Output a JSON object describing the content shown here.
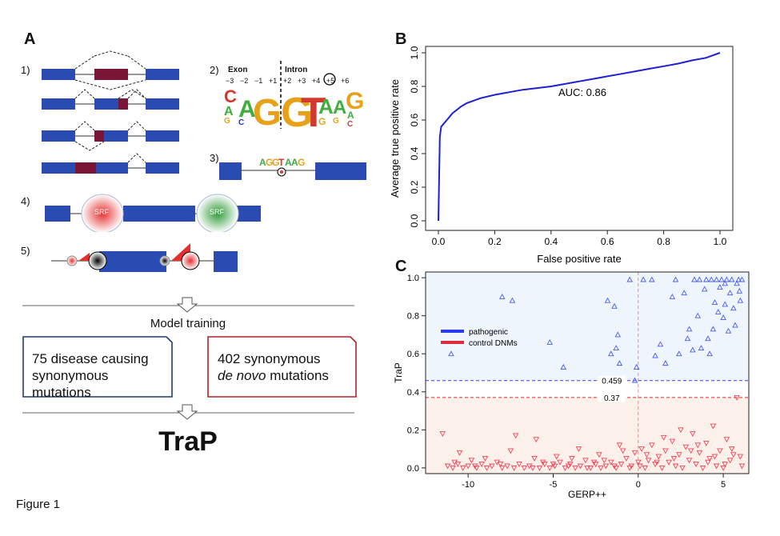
{
  "figure_label": "Figure 1",
  "panel_a": {
    "letter": "A",
    "steps": [
      "1)",
      "2)",
      "3)",
      "4)",
      "5)"
    ],
    "logo": {
      "exon_label": "Exon",
      "intron_label": "Intron",
      "positions": [
        "−3",
        "−2",
        "−1",
        "+1",
        "+2",
        "+3",
        "+4",
        "+5",
        "+6"
      ]
    },
    "srf_label": "SRF",
    "model_training": "Model training",
    "box_pathogenic": {
      "line1": "75 disease causing",
      "line2": "synonymous mutations"
    },
    "box_control": {
      "line1": "402 synonymous",
      "line2_italic": "de novo",
      "line2_rest": " mutations"
    },
    "title": "TraP",
    "colors": {
      "exon": "#2a4cb2",
      "highlight": "#7a1535",
      "box_blue": "#1f3a6e",
      "box_red": "#b3202a"
    }
  },
  "panel_b": {
    "letter": "B",
    "chart_data": {
      "type": "line",
      "xlabel": "False positive rate",
      "ylabel": "Average true positive rate",
      "xlim": [
        0,
        1
      ],
      "ylim": [
        0,
        1
      ],
      "xticks": [
        "0.0",
        "0.2",
        "0.4",
        "0.6",
        "0.8",
        "1.0"
      ],
      "yticks": [
        "0.0",
        "0.2",
        "0.4",
        "0.6",
        "0.8",
        "1.0"
      ],
      "annotation": "AUC: 0.86",
      "series": [
        {
          "color": "#1f1fd6",
          "x": [
            0.0,
            0.0,
            0.005,
            0.01,
            0.02,
            0.03,
            0.05,
            0.08,
            0.1,
            0.15,
            0.2,
            0.25,
            0.3,
            0.35,
            0.4,
            0.45,
            0.5,
            0.55,
            0.6,
            0.65,
            0.7,
            0.75,
            0.8,
            0.85,
            0.9,
            0.95,
            1.0
          ],
          "y": [
            0.0,
            0.0,
            0.5,
            0.56,
            0.58,
            0.6,
            0.64,
            0.68,
            0.7,
            0.73,
            0.75,
            0.765,
            0.78,
            0.79,
            0.8,
            0.815,
            0.83,
            0.845,
            0.86,
            0.875,
            0.89,
            0.905,
            0.92,
            0.935,
            0.955,
            0.97,
            1.0
          ]
        }
      ]
    }
  },
  "panel_c": {
    "letter": "C",
    "chart_data": {
      "type": "scatter",
      "xlabel": "GERP++",
      "ylabel": "TraP",
      "xlim": [
        -12.5,
        6.5
      ],
      "ylim": [
        -0.03,
        1.03
      ],
      "xticks": [
        -10,
        -5,
        0,
        5
      ],
      "xtick_labels": [
        "-10",
        "-5",
        "0",
        "5"
      ],
      "yticks": [
        "0.0",
        "0.2",
        "0.4",
        "0.6",
        "0.8",
        "1.0"
      ],
      "thresholds": [
        {
          "label": "0.459",
          "value": 0.459,
          "color": "#3a3aff"
        },
        {
          "label": "0.37",
          "value": 0.37,
          "color": "#e02a2a"
        }
      ],
      "vertical_line_x": 0,
      "legend_position": "upper-left",
      "series": [
        {
          "name": "pathogenic",
          "color": "#4a5cf0",
          "marker": "triangle-up",
          "points": [
            [
              -11,
              0.6
            ],
            [
              -8,
              0.9
            ],
            [
              -7.4,
              0.88
            ],
            [
              -5.2,
              0.66
            ],
            [
              -4.4,
              0.53
            ],
            [
              -1.8,
              0.88
            ],
            [
              -1.4,
              0.85
            ],
            [
              -1.6,
              0.6
            ],
            [
              -1.3,
              0.63
            ],
            [
              -1.1,
              0.55
            ],
            [
              -1.2,
              0.7
            ],
            [
              -0.5,
              0.99
            ],
            [
              -0.2,
              0.46
            ],
            [
              -0.1,
              0.53
            ],
            [
              0.3,
              0.99
            ],
            [
              0.8,
              0.99
            ],
            [
              1.0,
              0.59
            ],
            [
              1.3,
              0.65
            ],
            [
              1.6,
              0.55
            ],
            [
              2.0,
              0.9
            ],
            [
              2.2,
              0.99
            ],
            [
              2.4,
              0.6
            ],
            [
              2.7,
              0.92
            ],
            [
              2.9,
              0.68
            ],
            [
              3.2,
              0.62
            ],
            [
              3.3,
              0.99
            ],
            [
              3.5,
              0.8
            ],
            [
              3.6,
              0.99
            ],
            [
              3.7,
              0.63
            ],
            [
              3.9,
              0.94
            ],
            [
              4.0,
              0.99
            ],
            [
              4.1,
              0.68
            ],
            [
              4.3,
              0.99
            ],
            [
              4.4,
              0.73
            ],
            [
              4.5,
              0.87
            ],
            [
              4.6,
              0.99
            ],
            [
              4.7,
              0.82
            ],
            [
              4.8,
              0.95
            ],
            [
              4.9,
              0.99
            ],
            [
              5.0,
              0.79
            ],
            [
              5.1,
              0.86
            ],
            [
              5.2,
              0.99
            ],
            [
              5.3,
              0.72
            ],
            [
              5.4,
              0.92
            ],
            [
              5.5,
              0.99
            ],
            [
              5.6,
              0.84
            ],
            [
              5.7,
              0.75
            ],
            [
              5.8,
              0.97
            ],
            [
              5.9,
              0.99
            ],
            [
              6.0,
              0.88
            ],
            [
              6.1,
              0.99
            ],
            [
              5.95,
              0.93
            ],
            [
              5.1,
              0.97
            ],
            [
              4.2,
              0.6
            ],
            [
              3.0,
              0.73
            ]
          ]
        },
        {
          "name": "control DNMs",
          "color": "#f0445a",
          "marker": "triangle-down",
          "points": [
            [
              -11.2,
              0.01
            ],
            [
              -10.9,
              0.0
            ],
            [
              -10.6,
              0.02
            ],
            [
              -10.3,
              0.0
            ],
            [
              -10.0,
              0.01
            ],
            [
              -9.8,
              0.04
            ],
            [
              -9.5,
              0.0
            ],
            [
              -9.2,
              0.02
            ],
            [
              -8.9,
              0.0
            ],
            [
              -8.6,
              0.01
            ],
            [
              -8.3,
              0.03
            ],
            [
              -8.0,
              0.0
            ],
            [
              -7.7,
              0.01
            ],
            [
              -7.3,
              0.0
            ],
            [
              -7.0,
              0.02
            ],
            [
              -6.7,
              0.0
            ],
            [
              -6.4,
              0.01
            ],
            [
              -6.1,
              0.05
            ],
            [
              -5.8,
              0.0
            ],
            [
              -5.5,
              0.02
            ],
            [
              -5.2,
              0.0
            ],
            [
              -4.9,
              0.01
            ],
            [
              -4.6,
              0.03
            ],
            [
              -4.3,
              0.0
            ],
            [
              -4.0,
              0.02
            ],
            [
              -3.7,
              0.0
            ],
            [
              -3.4,
              0.01
            ],
            [
              -3.1,
              0.04
            ],
            [
              -2.8,
              0.0
            ],
            [
              -2.5,
              0.02
            ],
            [
              -2.2,
              0.0
            ],
            [
              -1.9,
              0.01
            ],
            [
              -1.6,
              0.03
            ],
            [
              -1.3,
              0.0
            ],
            [
              -1.0,
              0.02
            ],
            [
              -0.7,
              0.05
            ],
            [
              -0.4,
              0.01
            ],
            [
              -0.2,
              0.08
            ],
            [
              0.0,
              0.03
            ],
            [
              0.2,
              0.1
            ],
            [
              0.4,
              0.0
            ],
            [
              0.6,
              0.04
            ],
            [
              0.8,
              0.12
            ],
            [
              1.0,
              0.02
            ],
            [
              1.2,
              0.06
            ],
            [
              1.4,
              0.0
            ],
            [
              1.6,
              0.09
            ],
            [
              1.8,
              0.03
            ],
            [
              2.0,
              0.14
            ],
            [
              2.2,
              0.01
            ],
            [
              2.4,
              0.07
            ],
            [
              2.6,
              0.0
            ],
            [
              2.8,
              0.11
            ],
            [
              3.0,
              0.04
            ],
            [
              3.2,
              0.18
            ],
            [
              3.4,
              0.02
            ],
            [
              3.6,
              0.08
            ],
            [
              3.8,
              0.0
            ],
            [
              4.0,
              0.13
            ],
            [
              4.2,
              0.05
            ],
            [
              4.4,
              0.22
            ],
            [
              4.6,
              0.01
            ],
            [
              4.8,
              0.09
            ],
            [
              5.0,
              0.0
            ],
            [
              5.2,
              0.15
            ],
            [
              5.4,
              0.04
            ],
            [
              5.6,
              0.07
            ],
            [
              5.8,
              0.37
            ],
            [
              6.0,
              0.06
            ],
            [
              6.1,
              0.01
            ],
            [
              -10.5,
              0.08
            ],
            [
              -9.0,
              0.05
            ],
            [
              -7.5,
              0.09
            ],
            [
              -6.0,
              0.15
            ],
            [
              -4.8,
              0.06
            ],
            [
              -3.5,
              0.1
            ],
            [
              -2.3,
              0.07
            ],
            [
              -1.1,
              0.12
            ],
            [
              -11.5,
              0.18
            ],
            [
              -7.2,
              0.17
            ],
            [
              -5.6,
              0.03
            ],
            [
              -3.9,
              0.05
            ],
            [
              -2.6,
              0.03
            ],
            [
              -0.9,
              0.09
            ],
            [
              0.5,
              0.07
            ],
            [
              1.5,
              0.16
            ],
            [
              2.5,
              0.2
            ],
            [
              3.5,
              0.12
            ],
            [
              4.5,
              0.06
            ],
            [
              5.5,
              0.1
            ],
            [
              1.1,
              0.03
            ],
            [
              2.1,
              0.05
            ],
            [
              3.1,
              0.09
            ],
            [
              4.1,
              0.03
            ],
            [
              5.1,
              0.02
            ],
            [
              0.1,
              0.01
            ],
            [
              -0.5,
              0.0
            ],
            [
              -1.4,
              0.01
            ],
            [
              -2.0,
              0.04
            ],
            [
              -3.0,
              0.0
            ],
            [
              -4.1,
              0.01
            ],
            [
              -5.0,
              0.02
            ],
            [
              -6.2,
              0.0
            ],
            [
              -8.1,
              0.02
            ],
            [
              -9.6,
              0.01
            ],
            [
              -10.8,
              0.03
            ]
          ]
        }
      ]
    }
  }
}
